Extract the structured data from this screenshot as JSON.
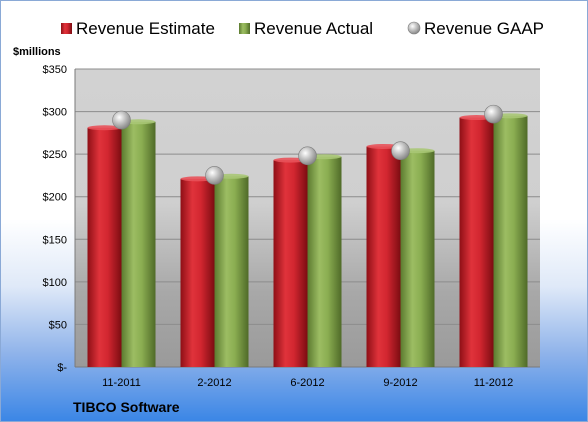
{
  "chart_data": {
    "type": "bar",
    "categories": [
      "11-2011",
      "2-2012",
      "6-2012",
      "9-2012",
      "11-2012"
    ],
    "series": [
      {
        "name": "Revenue Estimate",
        "values": [
          281,
          221,
          243,
          259,
          293
        ],
        "color": "#c8202a"
      },
      {
        "name": "Revenue Actual",
        "values": [
          288,
          224,
          247,
          254,
          295
        ],
        "color": "#7fa04a"
      },
      {
        "name": "Revenue GAAP",
        "values": [
          290,
          225,
          248,
          254,
          297
        ],
        "color": "#b8b8b8",
        "marker": "sphere"
      }
    ],
    "ylabel": "$millions",
    "ylim": [
      0,
      350
    ],
    "yticks": [
      0,
      50,
      100,
      150,
      200,
      250,
      300,
      350
    ],
    "ytick_labels": [
      "$-",
      "$50",
      "$100",
      "$150",
      "$200",
      "$250",
      "$300",
      "$350"
    ],
    "grid": true,
    "legend_position": "top"
  },
  "company": "TIBCO Software"
}
